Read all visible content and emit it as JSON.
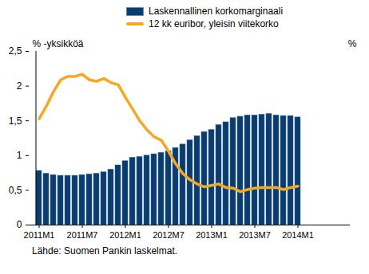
{
  "chart_data": {
    "type": "bar",
    "y_label": "% -yksikköä",
    "y2_label": "%",
    "source": "Lähde: Suomen Pankin laskelmat.",
    "categories": [
      "2011M1",
      null,
      null,
      null,
      null,
      null,
      "2011M7",
      null,
      null,
      null,
      null,
      null,
      "2012M1",
      null,
      null,
      null,
      null,
      null,
      "2012M7",
      null,
      null,
      null,
      null,
      null,
      "2013M1",
      null,
      null,
      null,
      null,
      null,
      "2013M7",
      null,
      null,
      null,
      null,
      null,
      "2014M1",
      null,
      null,
      null,
      null,
      null,
      null
    ],
    "series": [
      {
        "name": "Laskennallinen korkomarginaali",
        "type": "bar",
        "color": "#0b3c6e",
        "values": [
          0.78,
          0.74,
          0.72,
          0.71,
          0.71,
          0.71,
          0.72,
          0.73,
          0.74,
          0.76,
          0.8,
          0.86,
          0.92,
          0.97,
          0.98,
          1.0,
          1.02,
          1.04,
          1.06,
          1.11,
          1.16,
          1.22,
          1.28,
          1.34,
          1.37,
          1.44,
          1.48,
          1.54,
          1.56,
          1.58,
          1.58,
          1.59,
          1.6,
          1.58,
          1.57,
          1.57,
          1.55,
          null,
          null,
          null,
          null,
          null,
          null
        ]
      },
      {
        "name": "12 kk euribor, yleisin viitekorko",
        "type": "line",
        "color": "#f7a823",
        "values": [
          1.53,
          1.71,
          1.92,
          2.09,
          2.14,
          2.14,
          2.17,
          2.09,
          2.07,
          2.11,
          2.05,
          2.02,
          1.84,
          1.67,
          1.5,
          1.37,
          1.27,
          1.22,
          1.06,
          0.88,
          0.74,
          0.65,
          0.59,
          0.55,
          0.57,
          0.59,
          0.54,
          0.53,
          0.48,
          0.51,
          0.53,
          0.54,
          0.54,
          0.54,
          0.51,
          0.54,
          0.56,
          null,
          null,
          null,
          null,
          null,
          null
        ]
      }
    ],
    "ylim": [
      0,
      2.5
    ],
    "yticks": [
      0,
      {
        "value": 0.5,
        "label": "0,5"
      },
      1,
      {
        "value": 1.5,
        "label": "1,5"
      },
      2,
      {
        "value": 2.5,
        "label": "2,5"
      }
    ],
    "grid": false
  }
}
